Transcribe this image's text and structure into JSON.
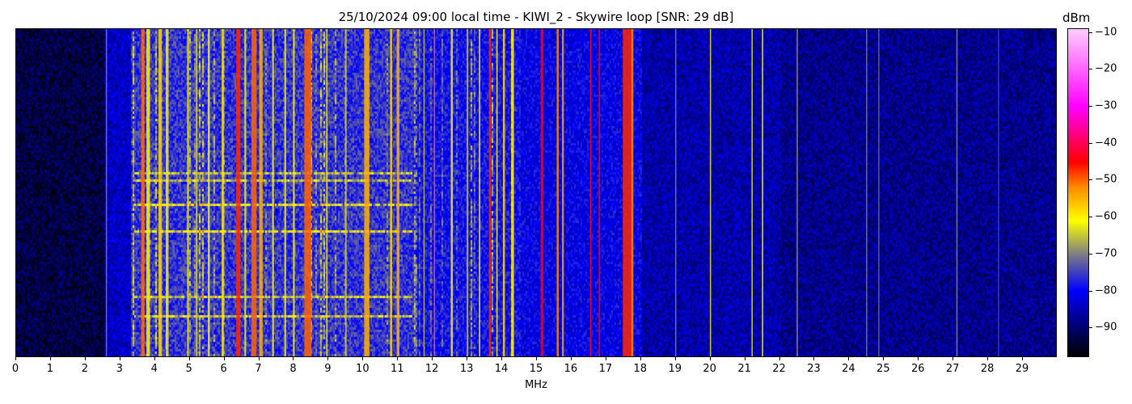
{
  "chart_data": {
    "type": "heatmap",
    "title": "25/10/2024 09:00 local time - KIWI_2 - Skywire loop [SNR: 29 dB]",
    "xlabel": "MHz",
    "ylabel": "",
    "xlim": [
      0,
      30
    ],
    "x_ticks": [
      0,
      1,
      2,
      3,
      4,
      5,
      6,
      7,
      8,
      9,
      10,
      11,
      12,
      13,
      14,
      15,
      16,
      17,
      18,
      19,
      20,
      21,
      22,
      23,
      24,
      25,
      26,
      27,
      28,
      29
    ],
    "colorbar": {
      "label": "dBm",
      "range": [
        -98,
        -9
      ],
      "ticks": [
        -10,
        -20,
        -30,
        -40,
        -50,
        -60,
        -70,
        -80,
        -90
      ],
      "colormap": [
        {
          "dbm": -98,
          "color": "#000000"
        },
        {
          "dbm": -90,
          "color": "#000070"
        },
        {
          "dbm": -80,
          "color": "#0000ff"
        },
        {
          "dbm": -70,
          "color": "#808080"
        },
        {
          "dbm": -61,
          "color": "#ffff00"
        },
        {
          "dbm": -52,
          "color": "#ff8c00"
        },
        {
          "dbm": -45,
          "color": "#ff0000"
        },
        {
          "dbm": -30,
          "color": "#ff00ff"
        },
        {
          "dbm": -9,
          "color": "#ffccff"
        }
      ]
    },
    "noise_floor_bands": [
      {
        "from_mhz": 0,
        "to_mhz": 2.55,
        "dbm": -93
      },
      {
        "from_mhz": 2.55,
        "to_mhz": 3.3,
        "dbm": -84
      },
      {
        "from_mhz": 3.3,
        "to_mhz": 11.5,
        "dbm": -76
      },
      {
        "from_mhz": 11.5,
        "to_mhz": 14.5,
        "dbm": -79
      },
      {
        "from_mhz": 14.5,
        "to_mhz": 18,
        "dbm": -81
      },
      {
        "from_mhz": 18,
        "to_mhz": 22,
        "dbm": -86
      },
      {
        "from_mhz": 22,
        "to_mhz": 30,
        "dbm": -88
      }
    ],
    "signals": [
      {
        "mhz": 2.6,
        "dbm": -70,
        "bw": 0.03
      },
      {
        "mhz": 3.65,
        "dbm": -50,
        "bw": 0.1
      },
      {
        "mhz": 3.8,
        "dbm": -60,
        "bw": 0.1
      },
      {
        "mhz": 4.15,
        "dbm": -58,
        "bw": 0.1
      },
      {
        "mhz": 4.35,
        "dbm": -62,
        "bw": 0.08
      },
      {
        "mhz": 4.95,
        "dbm": -62,
        "bw": 0.05
      },
      {
        "mhz": 5.2,
        "dbm": -64,
        "bw": 0.05
      },
      {
        "mhz": 5.55,
        "dbm": -62,
        "bw": 0.06
      },
      {
        "mhz": 5.95,
        "dbm": -60,
        "bw": 0.06
      },
      {
        "mhz": 6.4,
        "dbm": -47,
        "bw": 0.12
      },
      {
        "mhz": 6.6,
        "dbm": -62,
        "bw": 0.05
      },
      {
        "mhz": 6.85,
        "dbm": -50,
        "bw": 0.15
      },
      {
        "mhz": 7.05,
        "dbm": -55,
        "bw": 0.1
      },
      {
        "mhz": 7.4,
        "dbm": -62,
        "bw": 0.05
      },
      {
        "mhz": 7.75,
        "dbm": -62,
        "bw": 0.05
      },
      {
        "mhz": 8.0,
        "dbm": -60,
        "bw": 0.05
      },
      {
        "mhz": 8.4,
        "dbm": -50,
        "bw": 0.2
      },
      {
        "mhz": 8.95,
        "dbm": -62,
        "bw": 0.04
      },
      {
        "mhz": 9.5,
        "dbm": -65,
        "bw": 0.04
      },
      {
        "mhz": 10.1,
        "dbm": -55,
        "bw": 0.15
      },
      {
        "mhz": 10.8,
        "dbm": -58,
        "bw": 0.06
      },
      {
        "mhz": 11.0,
        "dbm": -55,
        "bw": 0.08
      },
      {
        "mhz": 11.75,
        "dbm": -65,
        "bw": 0.03
      },
      {
        "mhz": 12.05,
        "dbm": -50,
        "bw": 0.02
      },
      {
        "mhz": 12.55,
        "dbm": -62,
        "bw": 0.06
      },
      {
        "mhz": 13.0,
        "dbm": -66,
        "bw": 0.05
      },
      {
        "mhz": 13.35,
        "dbm": -62,
        "bw": 0.04
      },
      {
        "mhz": 13.65,
        "dbm": -47,
        "bw": 0.06
      },
      {
        "mhz": 13.85,
        "dbm": -62,
        "bw": 0.04
      },
      {
        "mhz": 14.05,
        "dbm": -58,
        "bw": 0.06
      },
      {
        "mhz": 14.3,
        "dbm": -60,
        "bw": 0.08
      },
      {
        "mhz": 15.15,
        "dbm": -45,
        "bw": 0.08
      },
      {
        "mhz": 15.6,
        "dbm": -52,
        "bw": 0.06
      },
      {
        "mhz": 15.75,
        "dbm": -55,
        "bw": 0.05
      },
      {
        "mhz": 16.55,
        "dbm": -45,
        "bw": 0.04
      },
      {
        "mhz": 16.8,
        "dbm": -45,
        "bw": 0.04
      },
      {
        "mhz": 17.6,
        "dbm": -47,
        "bw": 0.25
      },
      {
        "mhz": 17.75,
        "dbm": -52,
        "bw": 0.06
      },
      {
        "mhz": 19.0,
        "dbm": -70,
        "bw": 0.02
      },
      {
        "mhz": 20.0,
        "dbm": -62,
        "bw": 0.02
      },
      {
        "mhz": 21.2,
        "dbm": -62,
        "bw": 0.02
      },
      {
        "mhz": 21.5,
        "dbm": -60,
        "bw": 0.04
      },
      {
        "mhz": 22.5,
        "dbm": -68,
        "bw": 0.03
      },
      {
        "mhz": 24.5,
        "dbm": -70,
        "bw": 0.02
      },
      {
        "mhz": 24.85,
        "dbm": -72,
        "bw": 0.02
      },
      {
        "mhz": 27.1,
        "dbm": -70,
        "bw": 0.04
      },
      {
        "mhz": 28.3,
        "dbm": -75,
        "bw": 0.03
      }
    ]
  }
}
